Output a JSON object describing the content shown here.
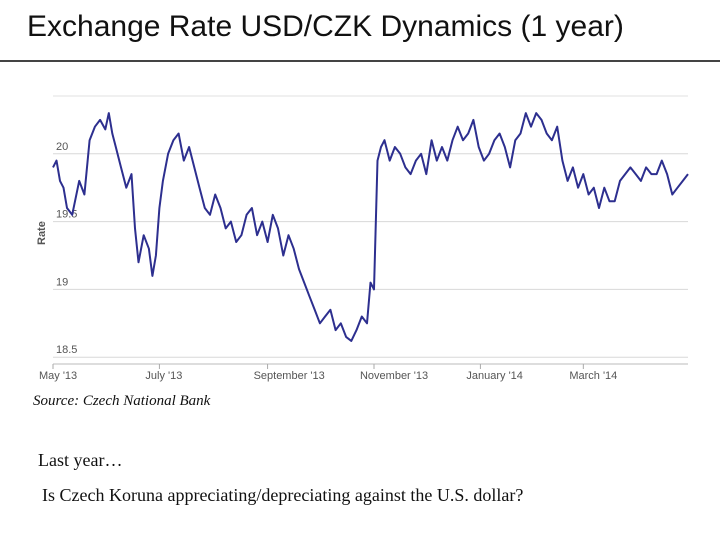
{
  "title": "Exchange Rate USD/CZK Dynamics (1 year)",
  "source": "Source: Czech National Bank",
  "body": {
    "line1": "Last year…",
    "line2": "Is Czech Koruna appreciating/depreciating against the U.S. dollar?"
  },
  "chart_data": {
    "type": "line",
    "ylabel": "Rate",
    "ylim": [
      18.45,
      20.5
    ],
    "y_ticks": [
      {
        "value": 18.5,
        "label": "18.5"
      },
      {
        "value": 19,
        "label": "19"
      },
      {
        "value": 19.5,
        "label": "19.5"
      },
      {
        "value": 20,
        "label": "20"
      }
    ],
    "x_range": [
      "2013-05-01",
      "2014-04-30"
    ],
    "x_ticks": [
      {
        "date": "2013-05-01",
        "label": "May '13"
      },
      {
        "date": "2013-07-01",
        "label": "July '13"
      },
      {
        "date": "2013-09-01",
        "label": "September '13"
      },
      {
        "date": "2013-11-01",
        "label": "November '13"
      },
      {
        "date": "2014-01-01",
        "label": "January '14"
      },
      {
        "date": "2014-03-01",
        "label": "March '14"
      }
    ],
    "grid": true,
    "color": "#2d2f8f",
    "x": [
      "2013-05-01",
      "2013-05-03",
      "2013-05-05",
      "2013-05-07",
      "2013-05-09",
      "2013-05-12",
      "2013-05-16",
      "2013-05-19",
      "2013-05-22",
      "2013-05-25",
      "2013-05-28",
      "2013-05-31",
      "2013-06-02",
      "2013-06-04",
      "2013-06-06",
      "2013-06-09",
      "2013-06-12",
      "2013-06-15",
      "2013-06-17",
      "2013-06-19",
      "2013-06-22",
      "2013-06-25",
      "2013-06-27",
      "2013-06-29",
      "2013-07-01",
      "2013-07-03",
      "2013-07-06",
      "2013-07-09",
      "2013-07-12",
      "2013-07-15",
      "2013-07-18",
      "2013-07-21",
      "2013-07-24",
      "2013-07-27",
      "2013-07-30",
      "2013-08-02",
      "2013-08-05",
      "2013-08-08",
      "2013-08-11",
      "2013-08-14",
      "2013-08-17",
      "2013-08-20",
      "2013-08-23",
      "2013-08-26",
      "2013-08-29",
      "2013-09-01",
      "2013-09-04",
      "2013-09-07",
      "2013-09-10",
      "2013-09-13",
      "2013-09-16",
      "2013-09-19",
      "2013-09-22",
      "2013-09-25",
      "2013-09-28",
      "2013-10-01",
      "2013-10-04",
      "2013-10-07",
      "2013-10-10",
      "2013-10-13",
      "2013-10-16",
      "2013-10-19",
      "2013-10-22",
      "2013-10-25",
      "2013-10-28",
      "2013-10-30",
      "2013-11-01",
      "2013-11-03",
      "2013-11-05",
      "2013-11-07",
      "2013-11-10",
      "2013-11-13",
      "2013-11-16",
      "2013-11-19",
      "2013-11-22",
      "2013-11-25",
      "2013-11-28",
      "2013-12-01",
      "2013-12-04",
      "2013-12-07",
      "2013-12-10",
      "2013-12-13",
      "2013-12-16",
      "2013-12-19",
      "2013-12-22",
      "2013-12-25",
      "2013-12-28",
      "2013-12-31",
      "2014-01-03",
      "2014-01-06",
      "2014-01-09",
      "2014-01-12",
      "2014-01-15",
      "2014-01-18",
      "2014-01-21",
      "2014-01-24",
      "2014-01-27",
      "2014-01-30",
      "2014-02-02",
      "2014-02-05",
      "2014-02-08",
      "2014-02-11",
      "2014-02-14",
      "2014-02-17",
      "2014-02-20",
      "2014-02-23",
      "2014-02-26",
      "2014-03-01",
      "2014-03-04",
      "2014-03-07",
      "2014-03-10",
      "2014-03-13",
      "2014-03-16",
      "2014-03-19",
      "2014-03-22",
      "2014-03-25",
      "2014-03-28",
      "2014-03-31",
      "2014-04-03",
      "2014-04-06",
      "2014-04-09",
      "2014-04-12",
      "2014-04-15",
      "2014-04-18",
      "2014-04-21",
      "2014-04-24",
      "2014-04-27",
      "2014-04-30"
    ],
    "y": [
      19.9,
      19.95,
      19.8,
      19.75,
      19.6,
      19.55,
      19.8,
      19.7,
      20.1,
      20.2,
      20.25,
      20.18,
      20.3,
      20.15,
      20.05,
      19.9,
      19.75,
      19.85,
      19.45,
      19.2,
      19.4,
      19.3,
      19.1,
      19.25,
      19.6,
      19.8,
      20.0,
      20.1,
      20.15,
      19.95,
      20.05,
      19.9,
      19.75,
      19.6,
      19.55,
      19.7,
      19.6,
      19.45,
      19.5,
      19.35,
      19.4,
      19.55,
      19.6,
      19.4,
      19.5,
      19.35,
      19.55,
      19.45,
      19.25,
      19.4,
      19.3,
      19.15,
      19.05,
      18.95,
      18.85,
      18.75,
      18.8,
      18.85,
      18.7,
      18.75,
      18.65,
      18.62,
      18.7,
      18.8,
      18.75,
      19.05,
      19.0,
      19.95,
      20.05,
      20.1,
      19.95,
      20.05,
      20.0,
      19.9,
      19.85,
      19.95,
      20.0,
      19.85,
      20.1,
      19.95,
      20.05,
      19.95,
      20.1,
      20.2,
      20.1,
      20.15,
      20.25,
      20.05,
      19.95,
      20.0,
      20.1,
      20.15,
      20.05,
      19.9,
      20.1,
      20.15,
      20.3,
      20.2,
      20.3,
      20.25,
      20.15,
      20.1,
      20.2,
      19.95,
      19.8,
      19.9,
      19.75,
      19.85,
      19.7,
      19.75,
      19.6,
      19.75,
      19.65,
      19.65,
      19.8,
      19.85,
      19.9,
      19.85,
      19.8,
      19.9,
      19.85,
      19.85,
      19.95,
      19.85,
      19.7,
      19.75,
      19.8,
      19.85
    ]
  }
}
